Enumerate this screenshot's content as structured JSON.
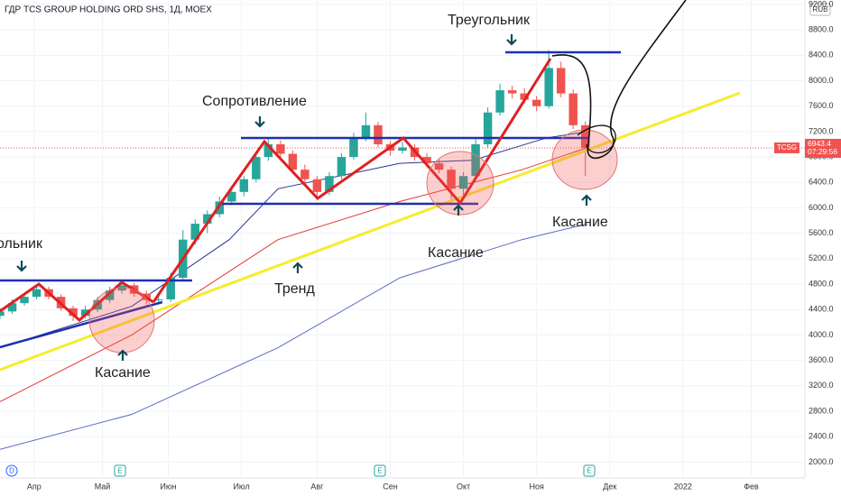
{
  "chart_data": {
    "type": "candlestick",
    "title": "ГДР TCS GROUP HOLDING ORD SHS, 1Д, MOEX",
    "symbol": "TCSG",
    "currency": "RUB",
    "last_price": 6943.4,
    "countdown": "07:29:56",
    "xlim": [
      -14,
      316
    ],
    "ylim": [
      1750,
      9270
    ],
    "xticks": [
      {
        "value": 0,
        "label": "Апр"
      },
      {
        "value": 28,
        "label": "Май"
      },
      {
        "value": 55,
        "label": "Июн"
      },
      {
        "value": 85,
        "label": "Июл"
      },
      {
        "value": 116,
        "label": "Авг"
      },
      {
        "value": 146,
        "label": "Сен"
      },
      {
        "value": 176,
        "label": "Окт"
      },
      {
        "value": 206,
        "label": "Ноя"
      },
      {
        "value": 236,
        "label": "Дек"
      },
      {
        "value": 266,
        "label": "2022"
      },
      {
        "value": 294,
        "label": "Фев"
      }
    ],
    "yticks": [
      {
        "value": 2000,
        "label": "2000.0"
      },
      {
        "value": 2400,
        "label": "2400.0"
      },
      {
        "value": 2800,
        "label": "2800.0"
      },
      {
        "value": 3200,
        "label": "3200.0"
      },
      {
        "value": 3600,
        "label": "3600.0"
      },
      {
        "value": 4000,
        "label": "4000.0"
      },
      {
        "value": 4400,
        "label": "4400.0"
      },
      {
        "value": 4800,
        "label": "4800.0"
      },
      {
        "value": 5200,
        "label": "5200.0"
      },
      {
        "value": 5600,
        "label": "5600.0"
      },
      {
        "value": 6000,
        "label": "6000.0"
      },
      {
        "value": 6400,
        "label": "6400.0"
      },
      {
        "value": 6800,
        "label": "6800.0"
      },
      {
        "value": 7200,
        "label": "7200.0"
      },
      {
        "value": 7600,
        "label": "7600.0"
      },
      {
        "value": 8000,
        "label": "8000.0"
      },
      {
        "value": 8400,
        "label": "8400.0"
      },
      {
        "value": 8800,
        "label": "8800.0"
      },
      {
        "value": 9200,
        "label": "9200.0"
      }
    ],
    "candles": {
      "x": [
        -14,
        -9,
        -4,
        1,
        6,
        11,
        16,
        21,
        26,
        31,
        36,
        41,
        46,
        51,
        56,
        61,
        66,
        71,
        76,
        81,
        86,
        91,
        96,
        101,
        106,
        111,
        116,
        121,
        126,
        131,
        136,
        141,
        146,
        151,
        156,
        161,
        166,
        171,
        176,
        181,
        186,
        191,
        196,
        201,
        206,
        211,
        216,
        221,
        226
      ],
      "ohlc": [
        [
          4300,
          4420,
          4250,
          4370
        ],
        [
          4370,
          4560,
          4330,
          4500
        ],
        [
          4500,
          4660,
          4460,
          4600
        ],
        [
          4600,
          4800,
          4560,
          4720
        ],
        [
          4720,
          4760,
          4560,
          4600
        ],
        [
          4600,
          4640,
          4380,
          4420
        ],
        [
          4420,
          4460,
          4220,
          4300
        ],
        [
          4300,
          4460,
          4260,
          4400
        ],
        [
          4400,
          4600,
          4360,
          4550
        ],
        [
          4550,
          4760,
          4500,
          4700
        ],
        [
          4700,
          4860,
          4650,
          4780
        ],
        [
          4780,
          4820,
          4600,
          4650
        ],
        [
          4650,
          4700,
          4480,
          4550
        ],
        [
          4550,
          4640,
          4480,
          4560
        ],
        [
          4560,
          4980,
          4520,
          4900
        ],
        [
          4900,
          5650,
          4860,
          5500
        ],
        [
          5500,
          5820,
          5420,
          5750
        ],
        [
          5750,
          5960,
          5600,
          5900
        ],
        [
          5900,
          6180,
          5850,
          6100
        ],
        [
          6100,
          6320,
          6040,
          6250
        ],
        [
          6250,
          6500,
          6180,
          6450
        ],
        [
          6450,
          6880,
          6400,
          6800
        ],
        [
          6800,
          7100,
          6740,
          7000
        ],
        [
          7000,
          7060,
          6780,
          6850
        ],
        [
          6850,
          6900,
          6540,
          6600
        ],
        [
          6600,
          6680,
          6380,
          6450
        ],
        [
          6450,
          6500,
          6150,
          6250
        ],
        [
          6250,
          6560,
          6200,
          6500
        ],
        [
          6500,
          6860,
          6450,
          6800
        ],
        [
          6800,
          7180,
          6760,
          7100
        ],
        [
          7100,
          7500,
          7050,
          7300
        ],
        [
          7300,
          7350,
          6950,
          7000
        ],
        [
          7000,
          7050,
          6820,
          6900
        ],
        [
          6900,
          7040,
          6850,
          6950
        ],
        [
          6950,
          7000,
          6740,
          6800
        ],
        [
          6800,
          6860,
          6640,
          6700
        ],
        [
          6700,
          6760,
          6540,
          6600
        ],
        [
          6600,
          6650,
          6120,
          6300
        ],
        [
          6300,
          6560,
          6200,
          6500
        ],
        [
          6500,
          7080,
          6450,
          7000
        ],
        [
          7000,
          7580,
          6950,
          7500
        ],
        [
          7500,
          7950,
          7450,
          7850
        ],
        [
          7850,
          7920,
          7720,
          7800
        ],
        [
          7800,
          7880,
          7640,
          7700
        ],
        [
          7700,
          7760,
          7520,
          7600
        ],
        [
          7600,
          8480,
          7560,
          8200
        ],
        [
          8200,
          8300,
          7740,
          7800
        ],
        [
          7800,
          7860,
          7240,
          7300
        ],
        [
          7300,
          7360,
          6500,
          6943
        ]
      ]
    },
    "series": [
      {
        "color": "#e53935",
        "x": [
          -14,
          40,
          100,
          150,
          200,
          227
        ],
        "values": [
          2950,
          4000,
          5500,
          6100,
          6600,
          6950
        ]
      },
      {
        "color": "#5c6bc0",
        "x": [
          -14,
          40,
          100,
          150,
          200,
          227
        ],
        "values": [
          2200,
          2750,
          3800,
          4900,
          5500,
          5750
        ]
      },
      {
        "color": "#283593",
        "x": [
          -14,
          40,
          80,
          100,
          150,
          180,
          210,
          227
        ],
        "values": [
          3800,
          4450,
          5500,
          6300,
          6700,
          6750,
          7100,
          7200
        ]
      }
    ],
    "annotations": [
      "Треугольник",
      "Касание",
      "Тренд",
      "Сопротивление",
      "Касание",
      "Треугольник",
      "Касание"
    ],
    "events": [
      "D",
      "E",
      "E",
      "E"
    ]
  }
}
